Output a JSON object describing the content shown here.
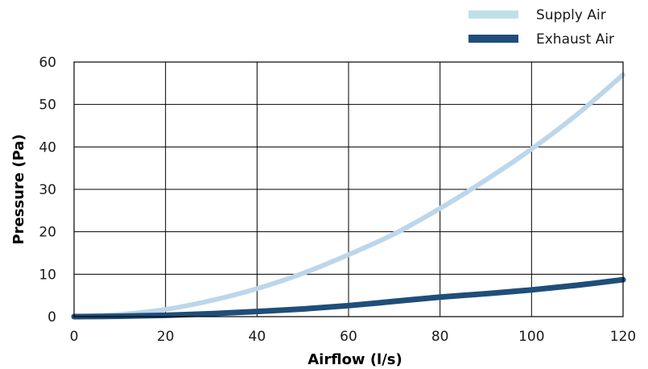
{
  "chart_data": {
    "type": "line",
    "title": "",
    "xlabel": "Airflow (l/s)",
    "ylabel": "Pressure (Pa)",
    "xlim": [
      0,
      120
    ],
    "ylim": [
      0,
      60
    ],
    "xticks": [
      0,
      20,
      40,
      60,
      80,
      100,
      120
    ],
    "yticks": [
      0,
      10,
      20,
      30,
      40,
      50,
      60
    ],
    "grid": true,
    "legend_position": "top-right",
    "series": [
      {
        "name": "Supply Air",
        "color": "#bcd6ec",
        "legend_color": "#bfe0e6",
        "x": [
          0,
          10,
          20,
          30,
          40,
          50,
          60,
          70,
          80,
          90,
          100,
          110,
          120
        ],
        "y": [
          0,
          0.5,
          1.7,
          3.8,
          6.6,
          10.2,
          14.6,
          19.5,
          25.5,
          32.2,
          39.5,
          47.7,
          57
        ]
      },
      {
        "name": "Exhaust Air",
        "color": "#1f4e7a",
        "legend_color": "#1f4e7a",
        "x": [
          0,
          10,
          20,
          30,
          40,
          50,
          60,
          70,
          80,
          90,
          100,
          110,
          120
        ],
        "y": [
          0,
          0.1,
          0.3,
          0.7,
          1.2,
          1.8,
          2.6,
          3.6,
          4.6,
          5.4,
          6.3,
          7.4,
          8.7
        ]
      }
    ]
  }
}
